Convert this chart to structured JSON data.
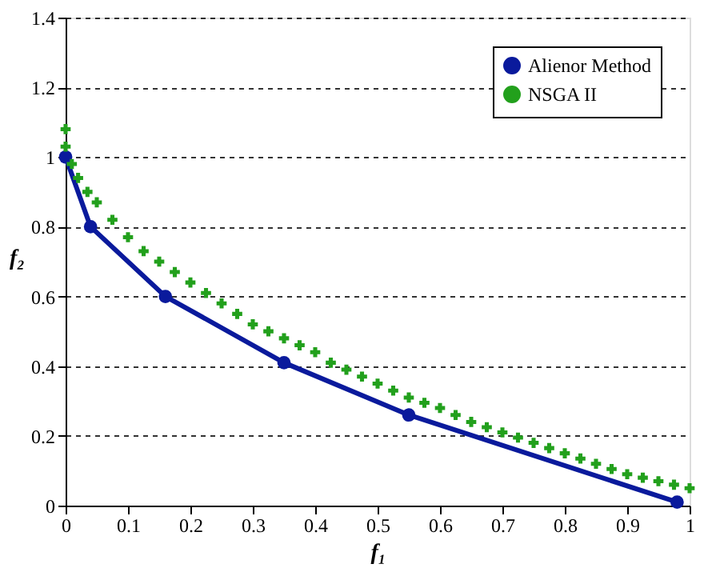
{
  "chart_data": {
    "type": "line",
    "xlabel": "f₁",
    "ylabel": "f₂",
    "xlim": [
      0,
      1
    ],
    "xticks": [
      0,
      0.1,
      0.2,
      0.3,
      0.4,
      0.5,
      0.6,
      0.7,
      0.8,
      0.9,
      1
    ],
    "ylim": [
      0,
      1.4
    ],
    "yticks": [
      0,
      0.2,
      0.4,
      0.6,
      0.8,
      1,
      1.2,
      1.4
    ],
    "grid": "y",
    "legend": "top right",
    "series": [
      {
        "name": "Alienor Method",
        "color": "#0a1a9c",
        "marker": "circle",
        "x": [
          0,
          0.04,
          0.16,
          0.35,
          0.55,
          0.98
        ],
        "values": [
          1.0,
          0.8,
          0.6,
          0.41,
          0.26,
          0.01
        ]
      },
      {
        "name": "NSGA II",
        "color": "#22a01c",
        "type": "scatter",
        "marker": "cross",
        "x": [
          0,
          0,
          0.01,
          0.02,
          0.035,
          0.05,
          0.075,
          0.1,
          0.125,
          0.15,
          0.175,
          0.2,
          0.225,
          0.25,
          0.275,
          0.3,
          0.325,
          0.35,
          0.375,
          0.4,
          0.425,
          0.45,
          0.475,
          0.5,
          0.525,
          0.55,
          0.575,
          0.6,
          0.625,
          0.65,
          0.675,
          0.7,
          0.725,
          0.75,
          0.775,
          0.8,
          0.825,
          0.85,
          0.875,
          0.9,
          0.925,
          0.95,
          0.975,
          1.0
        ],
        "values": [
          1.08,
          1.03,
          0.98,
          0.94,
          0.9,
          0.87,
          0.82,
          0.77,
          0.73,
          0.7,
          0.67,
          0.64,
          0.61,
          0.58,
          0.55,
          0.52,
          0.5,
          0.48,
          0.46,
          0.44,
          0.41,
          0.39,
          0.37,
          0.35,
          0.33,
          0.31,
          0.295,
          0.28,
          0.26,
          0.24,
          0.225,
          0.21,
          0.195,
          0.18,
          0.165,
          0.15,
          0.135,
          0.12,
          0.105,
          0.09,
          0.08,
          0.07,
          0.06,
          0.05
        ]
      }
    ]
  }
}
